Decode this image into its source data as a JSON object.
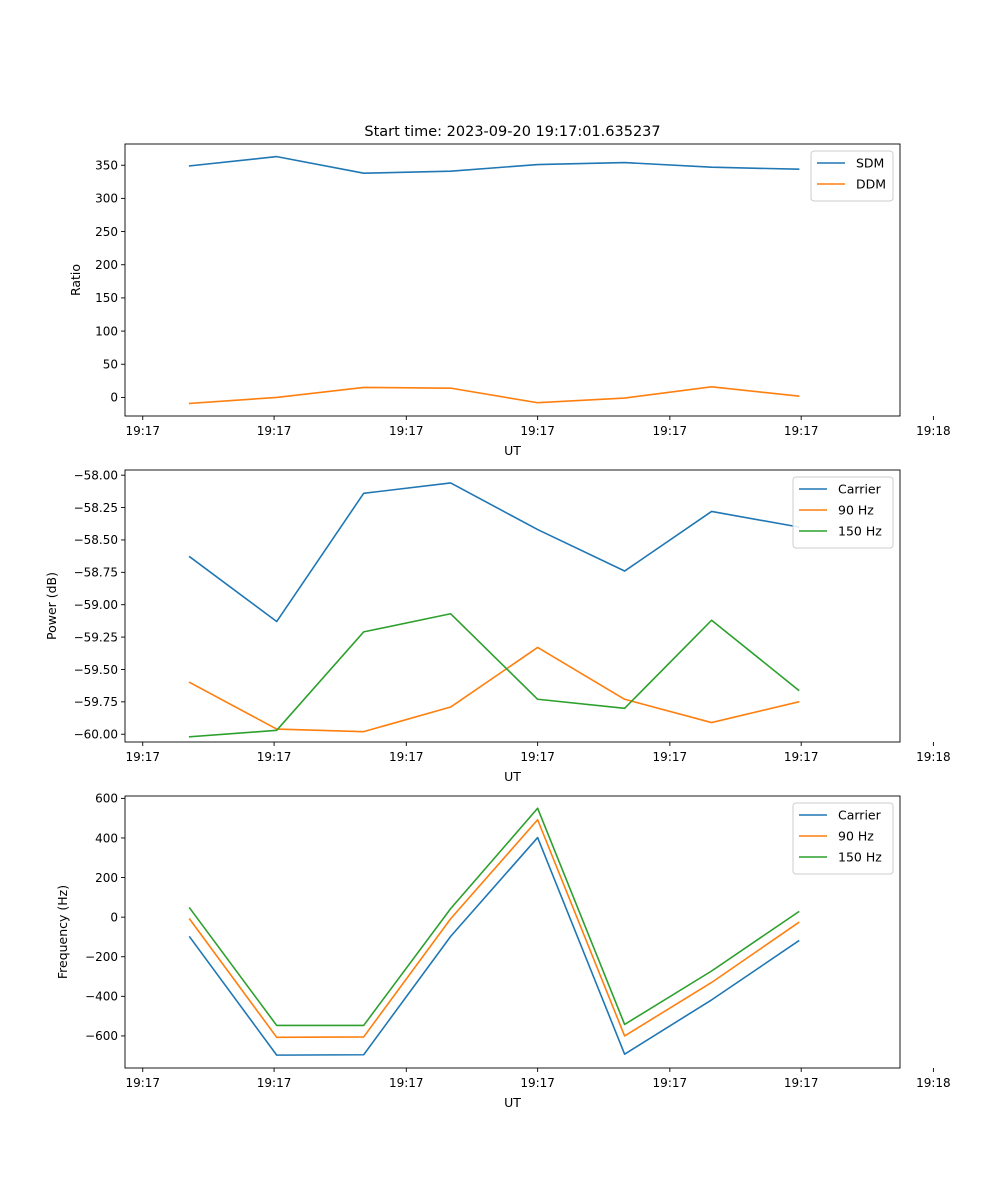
{
  "colors": {
    "blue": "#1f77b4",
    "orange": "#ff7f0e",
    "green": "#2ca02c"
  },
  "chart_data": [
    {
      "type": "line",
      "title": "Start time: 2023-09-20 19:17:01.635237",
      "xlabel": "UT",
      "ylabel": "Ratio",
      "x": [
        1,
        2,
        3,
        4,
        5,
        6,
        7,
        8
      ],
      "xlim": [
        0.256,
        9.166
      ],
      "xticks": [
        0.46,
        1.97,
        3.49,
        5.0,
        6.52,
        8.03,
        9.55
      ],
      "xtick_labels": [
        "19:17",
        "19:17",
        "19:17",
        "19:17",
        "19:17",
        "19:17",
        "19:18"
      ],
      "ylim": [
        -28,
        382
      ],
      "yticks": [
        0,
        50,
        100,
        150,
        200,
        250,
        300,
        350
      ],
      "ytick_labels": [
        "0",
        "50",
        "100",
        "150",
        "200",
        "250",
        "300",
        "350"
      ],
      "legend": "top-right",
      "series": [
        {
          "name": "SDM",
          "color": "#1f77b4",
          "values": [
            349,
            363,
            338,
            341,
            351,
            354,
            347,
            344
          ]
        },
        {
          "name": "DDM",
          "color": "#ff7f0e",
          "values": [
            -9,
            0,
            15,
            14,
            -8,
            -1,
            16,
            2
          ]
        }
      ]
    },
    {
      "type": "line",
      "title": "",
      "xlabel": "UT",
      "ylabel": "Power (dB)",
      "x": [
        1,
        2,
        3,
        4,
        5,
        6,
        7,
        8
      ],
      "xlim": [
        0.256,
        9.166
      ],
      "xticks": [
        0.46,
        1.97,
        3.49,
        5.0,
        6.52,
        8.03,
        9.55
      ],
      "xtick_labels": [
        "19:17",
        "19:17",
        "19:17",
        "19:17",
        "19:17",
        "19:17",
        "19:18"
      ],
      "ylim": [
        -60.06,
        -57.96
      ],
      "yticks": [
        -60.0,
        -59.75,
        -59.5,
        -59.25,
        -59.0,
        -58.75,
        -58.5,
        -58.25,
        -58.0
      ],
      "ytick_labels": [
        "−60.00",
        "−59.75",
        "−59.50",
        "−59.25",
        "−59.00",
        "−58.75",
        "−58.50",
        "−58.25",
        "−58.00"
      ],
      "legend": "top-right",
      "series": [
        {
          "name": "Carrier",
          "color": "#1f77b4",
          "values": [
            -58.63,
            -59.13,
            -58.14,
            -58.06,
            -58.42,
            -58.74,
            -58.28,
            -58.4
          ]
        },
        {
          "name": "90 Hz",
          "color": "#ff7f0e",
          "values": [
            -59.6,
            -59.96,
            -59.98,
            -59.79,
            -59.33,
            -59.73,
            -59.91,
            -59.75
          ]
        },
        {
          "name": "150 Hz",
          "color": "#2ca02c",
          "values": [
            -60.02,
            -59.97,
            -59.21,
            -59.07,
            -59.73,
            -59.8,
            -59.12,
            -59.66
          ]
        }
      ]
    },
    {
      "type": "line",
      "title": "",
      "xlabel": "UT",
      "ylabel": "Frequency (Hz)",
      "x": [
        1,
        2,
        3,
        4,
        5,
        6,
        7,
        8
      ],
      "xlim": [
        0.256,
        9.166
      ],
      "xticks": [
        0.46,
        1.97,
        3.49,
        5.0,
        6.52,
        8.03,
        9.55
      ],
      "xtick_labels": [
        "19:17",
        "19:17",
        "19:17",
        "19:17",
        "19:17",
        "19:17",
        "19:18"
      ],
      "ylim": [
        -762,
        612
      ],
      "yticks": [
        -600,
        -400,
        -200,
        0,
        200,
        400,
        600
      ],
      "ytick_labels": [
        "−600",
        "−400",
        "−200",
        "0",
        "200",
        "400",
        "600"
      ],
      "legend": "top-right",
      "series": [
        {
          "name": "Carrier",
          "color": "#1f77b4",
          "values": [
            -100,
            -697,
            -695,
            -97,
            402,
            -692,
            -418,
            -120
          ]
        },
        {
          "name": "90 Hz",
          "color": "#ff7f0e",
          "values": [
            -10,
            -607,
            -605,
            -8,
            492,
            -600,
            -330,
            -27
          ]
        },
        {
          "name": "150 Hz",
          "color": "#2ca02c",
          "values": [
            46,
            -547,
            -547,
            43,
            550,
            -542,
            -272,
            27
          ]
        }
      ]
    }
  ]
}
